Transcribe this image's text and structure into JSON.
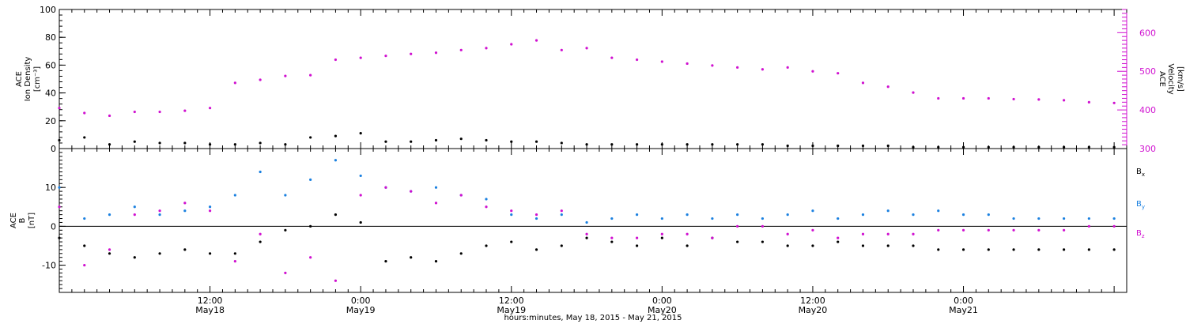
{
  "chart_data": [
    {
      "type": "scatter",
      "panel": "plasma",
      "ylabel_left": [
        "ACE",
        "Ion Density",
        "[cm⁻³]"
      ],
      "ylabel_right": [
        "ACE",
        "Velocity",
        "[km/s]"
      ],
      "ylim_left": [
        0,
        100
      ],
      "yticks_left": [
        0,
        20,
        40,
        60,
        80,
        100
      ],
      "ylim_right": [
        300,
        660
      ],
      "yticks_right": [
        300,
        400,
        500,
        600
      ],
      "xlim_hours": [
        0,
        85
      ],
      "series": [
        {
          "name": "",
          "axis": "left",
          "color": "#000000",
          "x": [
            0,
            2,
            4,
            6,
            8,
            10,
            12,
            14,
            16,
            18,
            20,
            22,
            24,
            26,
            28,
            30,
            32,
            34,
            36,
            38,
            40,
            42,
            44,
            46,
            48,
            50,
            52,
            54,
            56,
            58,
            60,
            62,
            64,
            66,
            68,
            70,
            72,
            74,
            76,
            78,
            80,
            82,
            84
          ],
          "values": [
            6,
            8,
            3,
            5,
            4,
            4,
            3,
            3,
            4,
            3,
            8,
            9,
            11,
            5,
            5,
            6,
            7,
            6,
            5,
            5,
            4,
            3,
            3,
            3,
            3,
            3,
            3,
            3,
            3,
            2,
            2,
            2,
            2,
            2,
            1,
            1,
            1,
            1,
            1,
            1,
            1,
            1,
            1
          ]
        },
        {
          "name": "",
          "axis": "right",
          "color": "#d010d0",
          "x": [
            0,
            2,
            4,
            6,
            8,
            10,
            12,
            14,
            16,
            18,
            20,
            22,
            24,
            26,
            28,
            30,
            32,
            34,
            36,
            38,
            40,
            42,
            44,
            46,
            48,
            50,
            52,
            54,
            56,
            58,
            60,
            62,
            64,
            66,
            68,
            70,
            72,
            74,
            76,
            78,
            80,
            82,
            84
          ],
          "values": [
            405,
            392,
            385,
            395,
            395,
            398,
            405,
            470,
            478,
            488,
            490,
            530,
            535,
            540,
            545,
            548,
            555,
            560,
            570,
            580,
            555,
            560,
            535,
            530,
            525,
            520,
            515,
            510,
            505,
            510,
            500,
            495,
            470,
            460,
            445,
            430,
            430,
            430,
            428,
            427,
            425,
            420,
            418
          ]
        }
      ]
    },
    {
      "type": "scatter",
      "panel": "magnetic-field",
      "ylabel_left": [
        "ACE",
        "B",
        "[nT]"
      ],
      "ylim": [
        -17,
        20
      ],
      "yticks": [
        -10,
        0,
        10
      ],
      "zero_line": true,
      "legend": [
        "Bx",
        "By",
        "Bz"
      ],
      "legend_position": "right",
      "xlim_hours": [
        0,
        85
      ],
      "series": [
        {
          "name": "Bx",
          "color": "#000000",
          "x": [
            0,
            2,
            4,
            6,
            8,
            10,
            12,
            14,
            16,
            18,
            20,
            22,
            24,
            26,
            28,
            30,
            32,
            34,
            36,
            38,
            40,
            42,
            44,
            46,
            48,
            50,
            52,
            54,
            56,
            58,
            60,
            62,
            64,
            66,
            68,
            70,
            72,
            74,
            76,
            78,
            80,
            82,
            84
          ],
          "values": [
            -3,
            -5,
            -7,
            -8,
            -7,
            -6,
            -7,
            -7,
            -4,
            -1,
            0,
            3,
            1,
            -9,
            -8,
            -9,
            -7,
            -5,
            -4,
            -6,
            -5,
            -3,
            -4,
            -5,
            -3,
            -5,
            -3,
            -4,
            -4,
            -5,
            -5,
            -4,
            -5,
            -5,
            -5,
            -6,
            -6,
            -6,
            -6,
            -6,
            -6,
            -6,
            -6
          ]
        },
        {
          "name": "By",
          "color": "#1a80e0",
          "x": [
            0,
            2,
            4,
            6,
            8,
            10,
            12,
            14,
            16,
            18,
            20,
            22,
            24,
            26,
            28,
            30,
            32,
            34,
            36,
            38,
            40,
            42,
            44,
            46,
            48,
            50,
            52,
            54,
            56,
            58,
            60,
            62,
            64,
            66,
            68,
            70,
            72,
            74,
            76,
            78,
            80,
            82,
            84
          ],
          "values": [
            10,
            2,
            3,
            5,
            3,
            4,
            5,
            8,
            14,
            8,
            12,
            17,
            13,
            10,
            9,
            10,
            8,
            7,
            3,
            2,
            3,
            1,
            2,
            3,
            2,
            3,
            2,
            3,
            2,
            3,
            4,
            2,
            3,
            4,
            3,
            4,
            3,
            3,
            2,
            2,
            2,
            2,
            2
          ]
        },
        {
          "name": "Bz",
          "color": "#d010d0",
          "x": [
            0,
            2,
            4,
            6,
            8,
            10,
            12,
            14,
            16,
            18,
            20,
            22,
            24,
            26,
            28,
            30,
            32,
            34,
            36,
            38,
            40,
            42,
            44,
            46,
            48,
            50,
            52,
            54,
            56,
            58,
            60,
            62,
            64,
            66,
            68,
            70,
            72,
            74,
            76,
            78,
            80,
            82,
            84
          ],
          "values": [
            5,
            -10,
            -6,
            3,
            4,
            6,
            4,
            -9,
            -2,
            -12,
            -8,
            -14,
            8,
            10,
            9,
            6,
            8,
            5,
            4,
            3,
            4,
            -2,
            -3,
            -3,
            -2,
            -2,
            -3,
            0,
            0,
            -2,
            -1,
            -3,
            -2,
            -2,
            -2,
            -1,
            -1,
            -1,
            -1,
            -1,
            -1,
            0,
            0
          ]
        }
      ]
    }
  ],
  "x_axis": {
    "xlabel": "hours:minutes, May 18, 2015 - May 21, 2015",
    "ticks": [
      {
        "hour": 12,
        "time": "12:00",
        "date": "May18"
      },
      {
        "hour": 24,
        "time": "0:00",
        "date": "May19"
      },
      {
        "hour": 36,
        "time": "12:00",
        "date": "May19"
      },
      {
        "hour": 48,
        "time": "0:00",
        "date": "May20"
      },
      {
        "hour": 60,
        "time": "12:00",
        "date": "May20"
      },
      {
        "hour": 72,
        "time": "0:00",
        "date": "May21"
      }
    ]
  },
  "colors": {
    "density": "#000000",
    "velocity": "#d010d0",
    "bx": "#000000",
    "by": "#1a80e0",
    "bz": "#d010d0"
  }
}
